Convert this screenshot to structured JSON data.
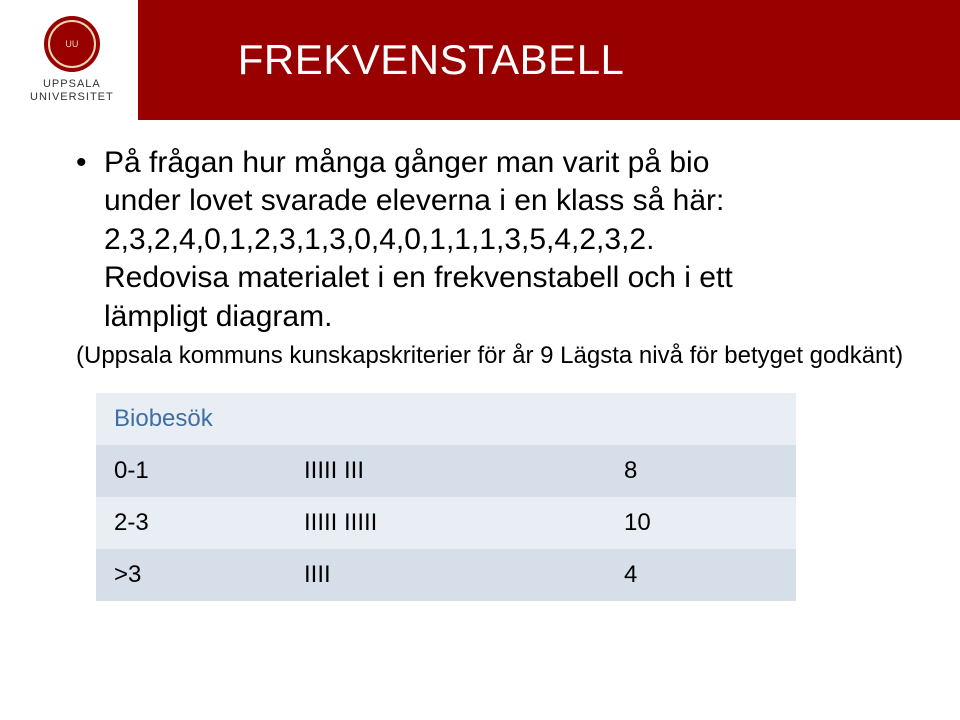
{
  "header": {
    "logo_line1": "UPPSALA",
    "logo_line2": "UNIVERSITET",
    "title": "FREKVENSTABELL",
    "title_bg": "#990000",
    "title_color": "#ffffff"
  },
  "bullets": [
    {
      "lines": [
        "På frågan hur många gånger man varit på bio",
        "under lovet svarade eleverna i en klass så här:",
        "2,3,2,4,0,1,2,3,1,3,0,4,0,1,1,1,3,5,4,2,3,2.",
        "Redovisa materialet i en frekvenstabell och i ett",
        "lämpligt diagram."
      ]
    }
  ],
  "caption": "(Uppsala kommuns kunskapskriterier för år 9 Lägsta nivå för betyget godkänt)",
  "table": {
    "header_label": "Biobesök",
    "header_color": "#3f6ea5",
    "row_bg": "#e9eef5",
    "row_bg_alt": "#d6deea",
    "rows": [
      {
        "range": "0-1",
        "tally": "IIIII III",
        "count": "8"
      },
      {
        "range": "2-3",
        "tally": "IIIII IIIII",
        "count": "10"
      },
      {
        "range": ">3",
        "tally": "IIII",
        "count": "4"
      }
    ]
  }
}
